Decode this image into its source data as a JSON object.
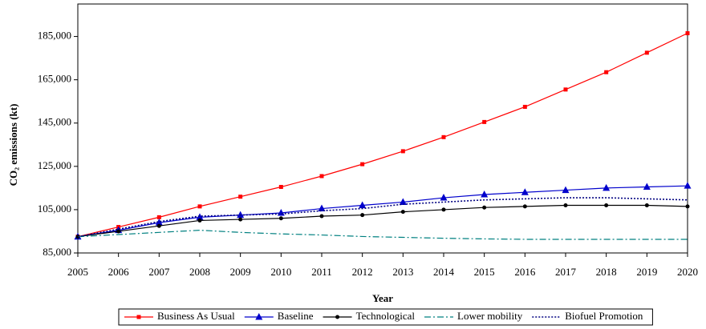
{
  "chart_data": {
    "type": "line",
    "x_label": "Year",
    "y_label": "CO₂ emissions (kt)",
    "x": [
      2005,
      2006,
      2007,
      2008,
      2009,
      2010,
      2011,
      2012,
      2013,
      2014,
      2015,
      2016,
      2017,
      2018,
      2019,
      2020
    ],
    "xlim": [
      2005,
      2020
    ],
    "xticks": [
      2005,
      2006,
      2007,
      2008,
      2009,
      2010,
      2011,
      2012,
      2013,
      2014,
      2015,
      2016,
      2017,
      2018,
      2019,
      2020
    ],
    "ylim": [
      85000,
      200000
    ],
    "yticks": [
      {
        "value": 85000,
        "label": "85,000"
      },
      {
        "value": 105000,
        "label": "105,000"
      },
      {
        "value": 125000,
        "label": "125,000"
      },
      {
        "value": 145000,
        "label": "145,000"
      },
      {
        "value": 165000,
        "label": "165,000"
      },
      {
        "value": 185000,
        "label": "185,000"
      }
    ],
    "legend_position": "bottom",
    "series": [
      {
        "name": "Business As Usual",
        "color": "#ff0000",
        "marker": "square",
        "dash": "solid",
        "values": [
          92500,
          97000,
          101500,
          106500,
          111000,
          115500,
          120500,
          126000,
          132000,
          138500,
          145500,
          152500,
          160500,
          168500,
          177500,
          186500
        ]
      },
      {
        "name": "Baseline",
        "color": "#0000cc",
        "marker": "triangle",
        "dash": "solid",
        "values": [
          92500,
          95500,
          99000,
          101500,
          102500,
          103500,
          105500,
          107000,
          108500,
          110500,
          112000,
          113000,
          114000,
          115000,
          115500,
          116000
        ]
      },
      {
        "name": "Technological",
        "color": "#000000",
        "marker": "circle",
        "dash": "solid",
        "values": [
          92500,
          95000,
          97500,
          100000,
          100500,
          101000,
          102000,
          102500,
          104000,
          105000,
          106000,
          106500,
          107000,
          107000,
          107000,
          106500
        ]
      },
      {
        "name": "Lower mobility",
        "color": "#008080",
        "marker": "none",
        "dash": "dashdot",
        "values": [
          92500,
          93500,
          94500,
          95500,
          94500,
          93800,
          93300,
          92600,
          92200,
          91800,
          91500,
          91300,
          91300,
          91300,
          91300,
          91300
        ]
      },
      {
        "name": "Biofuel Promotion",
        "color": "#000080",
        "marker": "none",
        "dash": "dotted",
        "values": [
          92500,
          96000,
          99500,
          102000,
          102500,
          103000,
          104500,
          105500,
          107500,
          108500,
          109500,
          110000,
          110500,
          110500,
          110000,
          109500
        ]
      }
    ]
  }
}
